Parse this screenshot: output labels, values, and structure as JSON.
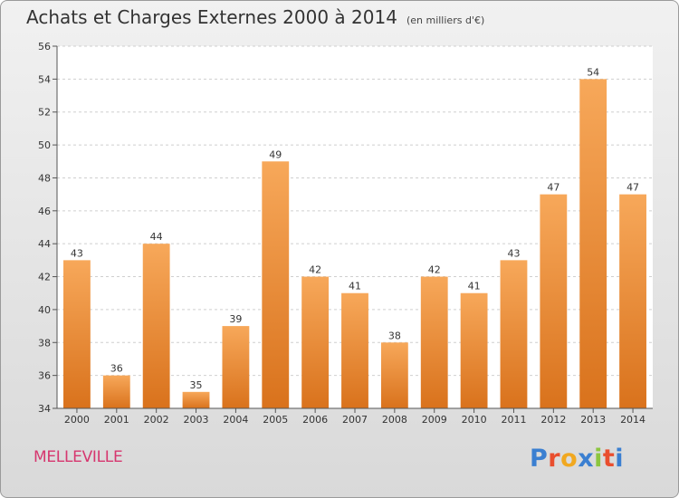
{
  "header": {
    "title": "Achats et Charges Externes 2000 à 2014",
    "unit": "(en milliers d'€)"
  },
  "footer": {
    "commune": "MELLEVILLE",
    "brand": "Proxiti",
    "brand_colors": [
      "#3a7fd1",
      "#e94e2e",
      "#f1a820",
      "#3a7fd1",
      "#8cc63f",
      "#e94e2e",
      "#3a7fd1"
    ]
  },
  "chart_data": {
    "type": "bar",
    "title": "Achats et Charges Externes 2000 à 2014",
    "categories": [
      "2000",
      "2001",
      "2002",
      "2003",
      "2004",
      "2005",
      "2006",
      "2007",
      "2008",
      "2009",
      "2010",
      "2011",
      "2012",
      "2013",
      "2014"
    ],
    "values": [
      43,
      36,
      44,
      35,
      39,
      49,
      42,
      41,
      38,
      42,
      41,
      43,
      47,
      54,
      47
    ],
    "ylim": [
      34,
      56
    ],
    "yticks": [
      34,
      36,
      38,
      40,
      42,
      44,
      46,
      48,
      50,
      52,
      54,
      56
    ],
    "grid": true,
    "bar_color_top": "#f7a85a",
    "bar_color_bottom": "#d9721c"
  }
}
